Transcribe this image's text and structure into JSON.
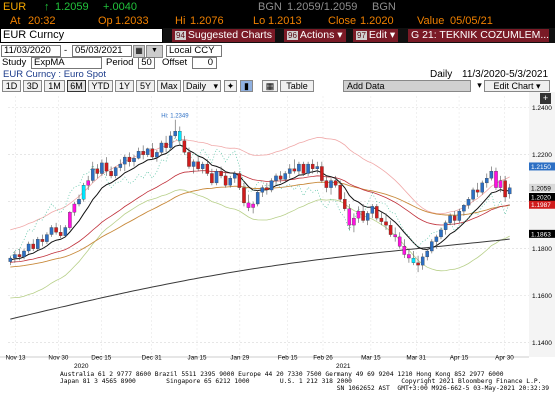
{
  "ticker": {
    "symbol": "EUR",
    "last_arrow": "↑",
    "last": "1.2059",
    "change": "+.0040",
    "src1": "BGN",
    "bid_ask": "1.2059/1.2059",
    "src2": "BGN",
    "time_label": "At",
    "time": "20:32",
    "op_label": "Op",
    "op": "1.2033",
    "hi_label": "Hi",
    "hi": "1.2076",
    "lo_label": "Lo",
    "lo": "1.2013",
    "close_label": "Close",
    "close": "1.2020",
    "value_label": "Value",
    "value": "05/05/21"
  },
  "command": {
    "security": "EUR Curncy",
    "tabs": [
      {
        "num": "94",
        "label": "Suggested Charts"
      },
      {
        "num": "96",
        "label": "Actions"
      },
      {
        "num": "97",
        "label": "Edit"
      }
    ],
    "title": "G 21: TEKNIK COZUMLEM..."
  },
  "controls": {
    "start_date": "11/03/2020",
    "end_date": "05/03/2021",
    "currency": "Local CCY",
    "study_label": "Study",
    "study": "ExpMA",
    "period_label": "Period",
    "period": "50",
    "offset_label": "Offset",
    "offset": "0"
  },
  "chart_header": {
    "left": "EUR Curncy : Euro Spot",
    "frequency": "Daily",
    "range": "11/3/2020-5/3/2021"
  },
  "toolbar": {
    "ranges": [
      "1D",
      "3D",
      "1M",
      "6M",
      "YTD",
      "1Y",
      "5Y",
      "Max"
    ],
    "selected": "6M",
    "freq": "Daily",
    "table": "Table",
    "add_data": "Add Data",
    "edit_chart": "Edit Chart"
  },
  "colors": {
    "bull": "#2c6fc4",
    "bear": "#d01c1c",
    "magenta": "#ff10e0",
    "cyan": "#00e6ff",
    "last_price": "#d9d9d9",
    "red_tag": "#d01c1c",
    "band": "#f0a8a8"
  },
  "chart_data": {
    "type": "candlestick",
    "y_ticks": [
      "1.2400",
      "1.2200",
      "1.2000",
      "1.1800",
      "1.1600",
      "1.1400"
    ],
    "ylim": [
      1.136,
      1.245
    ],
    "x_ticks": [
      "Nov 13",
      "Nov 30",
      "Dec 15",
      "Dec 31",
      "Jan 15",
      "Jan 29",
      "Feb 15",
      "Feb 26",
      "Mar 15",
      "Mar 31",
      "Apr 15",
      "Apr 30"
    ],
    "year_labels": [
      "2020",
      "2021"
    ],
    "hi_annotation": "Hi: 1.2349",
    "price_tags": [
      {
        "label": "1.2150",
        "value": 1.215,
        "color": "#2c6fc4"
      },
      {
        "label": "1.2059",
        "value": 1.2059,
        "color": "#d9d9d9"
      },
      {
        "label": "1.2020",
        "value": 1.202,
        "color": "#000000"
      },
      {
        "label": "1.1987",
        "value": 1.1987,
        "color": "#d01c1c"
      },
      {
        "label": "1.1863",
        "value": 1.1863,
        "color": "#000000"
      }
    ],
    "candles": [
      [
        1.1745,
        1.177,
        1.173,
        1.176
      ],
      [
        1.176,
        1.179,
        1.174,
        1.1775
      ],
      [
        1.1775,
        1.18,
        1.175,
        1.1765
      ],
      [
        1.1765,
        1.18,
        1.1755,
        1.179
      ],
      [
        1.179,
        1.183,
        1.178,
        1.182
      ],
      [
        1.182,
        1.184,
        1.179,
        1.18
      ],
      [
        1.18,
        1.185,
        1.1795,
        1.184
      ],
      [
        1.184,
        1.186,
        1.181,
        1.183
      ],
      [
        1.183,
        1.187,
        1.182,
        1.186
      ],
      [
        1.186,
        1.19,
        1.185,
        1.189
      ],
      [
        1.189,
        1.191,
        1.186,
        1.187
      ],
      [
        1.187,
        1.19,
        1.1845,
        1.1855
      ],
      [
        1.1855,
        1.19,
        1.185,
        1.189
      ],
      [
        1.189,
        1.196,
        1.188,
        1.1955
      ],
      [
        1.1955,
        1.2,
        1.194,
        1.199
      ],
      [
        1.199,
        1.203,
        1.198,
        1.201
      ],
      [
        1.201,
        1.208,
        1.2,
        1.207
      ],
      [
        1.207,
        1.211,
        1.205,
        1.209
      ],
      [
        1.209,
        1.217,
        1.208,
        1.214
      ],
      [
        1.214,
        1.216,
        1.21,
        1.212
      ],
      [
        1.212,
        1.218,
        1.211,
        1.2165
      ],
      [
        1.2165,
        1.219,
        1.211,
        1.213
      ],
      [
        1.213,
        1.215,
        1.21,
        1.211
      ],
      [
        1.211,
        1.215,
        1.21,
        1.2145
      ],
      [
        1.2145,
        1.218,
        1.213,
        1.216
      ],
      [
        1.216,
        1.22,
        1.213,
        1.219
      ],
      [
        1.219,
        1.221,
        1.215,
        1.217
      ],
      [
        1.217,
        1.22,
        1.215,
        1.2185
      ],
      [
        1.2185,
        1.223,
        1.218,
        1.2215
      ],
      [
        1.2215,
        1.224,
        1.218,
        1.22
      ],
      [
        1.22,
        1.223,
        1.219,
        1.2225
      ],
      [
        1.2225,
        1.225,
        1.218,
        1.219
      ],
      [
        1.219,
        1.222,
        1.217,
        1.221
      ],
      [
        1.221,
        1.226,
        1.22,
        1.225
      ],
      [
        1.225,
        1.228,
        1.221,
        1.223
      ],
      [
        1.223,
        1.23,
        1.222,
        1.228
      ],
      [
        1.228,
        1.2349,
        1.227,
        1.23
      ],
      [
        1.23,
        1.232,
        1.224,
        1.226
      ],
      [
        1.226,
        1.228,
        1.22,
        1.221
      ],
      [
        1.221,
        1.223,
        1.214,
        1.215
      ],
      [
        1.215,
        1.218,
        1.212,
        1.217
      ],
      [
        1.217,
        1.219,
        1.213,
        1.214
      ],
      [
        1.214,
        1.217,
        1.212,
        1.216
      ],
      [
        1.216,
        1.218,
        1.211,
        1.212
      ],
      [
        1.212,
        1.214,
        1.207,
        1.208
      ],
      [
        1.208,
        1.214,
        1.207,
        1.213
      ],
      [
        1.213,
        1.215,
        1.21,
        1.211
      ],
      [
        1.211,
        1.213,
        1.206,
        1.207
      ],
      [
        1.207,
        1.211,
        1.206,
        1.21
      ],
      [
        1.21,
        1.213,
        1.208,
        1.212
      ],
      [
        1.212,
        1.213,
        1.205,
        1.206
      ],
      [
        1.206,
        1.208,
        1.198,
        1.1995
      ],
      [
        1.1995,
        1.203,
        1.196,
        1.1975
      ],
      [
        1.1975,
        1.2,
        1.195,
        1.199
      ],
      [
        1.199,
        1.205,
        1.198,
        1.204
      ],
      [
        1.204,
        1.207,
        1.202,
        1.206
      ],
      [
        1.206,
        1.208,
        1.203,
        1.205
      ],
      [
        1.205,
        1.21,
        1.204,
        1.209
      ],
      [
        1.209,
        1.212,
        1.207,
        1.211
      ],
      [
        1.211,
        1.213,
        1.208,
        1.2095
      ],
      [
        1.2095,
        1.213,
        1.208,
        1.212
      ],
      [
        1.212,
        1.216,
        1.21,
        1.214
      ],
      [
        1.214,
        1.218,
        1.212,
        1.213
      ],
      [
        1.213,
        1.217,
        1.211,
        1.216
      ],
      [
        1.216,
        1.217,
        1.211,
        1.212
      ],
      [
        1.212,
        1.217,
        1.211,
        1.216
      ],
      [
        1.216,
        1.218,
        1.212,
        1.214
      ],
      [
        1.214,
        1.217,
        1.212,
        1.215
      ],
      [
        1.215,
        1.217,
        1.208,
        1.209
      ],
      [
        1.209,
        1.211,
        1.204,
        1.206
      ],
      [
        1.206,
        1.21,
        1.203,
        1.209
      ],
      [
        1.209,
        1.211,
        1.206,
        1.207
      ],
      [
        1.207,
        1.209,
        1.2,
        1.201
      ],
      [
        1.201,
        1.204,
        1.196,
        1.197
      ],
      [
        1.197,
        1.199,
        1.188,
        1.19
      ],
      [
        1.19,
        1.195,
        1.187,
        1.193
      ],
      [
        1.193,
        1.198,
        1.191,
        1.196
      ],
      [
        1.196,
        1.199,
        1.191,
        1.192
      ],
      [
        1.192,
        1.196,
        1.19,
        1.195
      ],
      [
        1.195,
        1.199,
        1.193,
        1.198
      ],
      [
        1.198,
        1.199,
        1.192,
        1.193
      ],
      [
        1.193,
        1.196,
        1.19,
        1.1915
      ],
      [
        1.1915,
        1.195,
        1.188,
        1.19
      ],
      [
        1.19,
        1.192,
        1.185,
        1.186
      ],
      [
        1.186,
        1.189,
        1.183,
        1.185
      ],
      [
        1.185,
        1.187,
        1.18,
        1.181
      ],
      [
        1.181,
        1.184,
        1.176,
        1.1775
      ],
      [
        1.1775,
        1.18,
        1.174,
        1.176
      ],
      [
        1.176,
        1.179,
        1.173,
        1.174
      ],
      [
        1.174,
        1.177,
        1.17,
        1.173
      ],
      [
        1.173,
        1.178,
        1.171,
        1.1765
      ],
      [
        1.1765,
        1.18,
        1.175,
        1.179
      ],
      [
        1.179,
        1.184,
        1.178,
        1.183
      ],
      [
        1.183,
        1.186,
        1.18,
        1.185
      ],
      [
        1.185,
        1.189,
        1.184,
        1.188
      ],
      [
        1.188,
        1.192,
        1.186,
        1.191
      ],
      [
        1.191,
        1.195,
        1.19,
        1.194
      ],
      [
        1.194,
        1.196,
        1.19,
        1.192
      ],
      [
        1.192,
        1.197,
        1.191,
        1.196
      ],
      [
        1.196,
        1.199,
        1.194,
        1.1985
      ],
      [
        1.1985,
        1.202,
        1.197,
        1.201
      ],
      [
        1.201,
        1.206,
        1.2,
        1.205
      ],
      [
        1.205,
        1.208,
        1.202,
        1.204
      ],
      [
        1.204,
        1.209,
        1.203,
        1.208
      ],
      [
        1.208,
        1.212,
        1.206,
        1.21
      ],
      [
        1.21,
        1.215,
        1.209,
        1.213
      ],
      [
        1.213,
        1.2145,
        1.205,
        1.206
      ],
      [
        1.206,
        1.211,
        1.204,
        1.209
      ],
      [
        1.209,
        1.211,
        1.2,
        1.202
      ],
      [
        1.2033,
        1.2076,
        1.2013,
        1.2059
      ]
    ],
    "highlight": {
      "magenta": [
        13,
        14,
        17,
        52,
        53,
        74,
        75,
        76,
        84,
        85,
        86,
        87,
        88,
        106,
        107
      ],
      "cyan": [
        16,
        37,
        88
      ]
    }
  },
  "footer": {
    "lines": [
      "Australia 61 2 9777 8600 Brazil 5511 2395 9000 Europe 44 20 7330 7500 Germany 49 69 9204 1210 Hong Kong 852 2977 6000",
      "Japan 81 3 4565 8900        Singapore 65 6212 1000        U.S. 1 212 318 2000             Copyright 2021 Bloomberg Finance L.P.",
      "                                                                         SN 1062652 AST  GMT+3:00 M926-662-5 03-May-2021 20:32:39"
    ]
  }
}
